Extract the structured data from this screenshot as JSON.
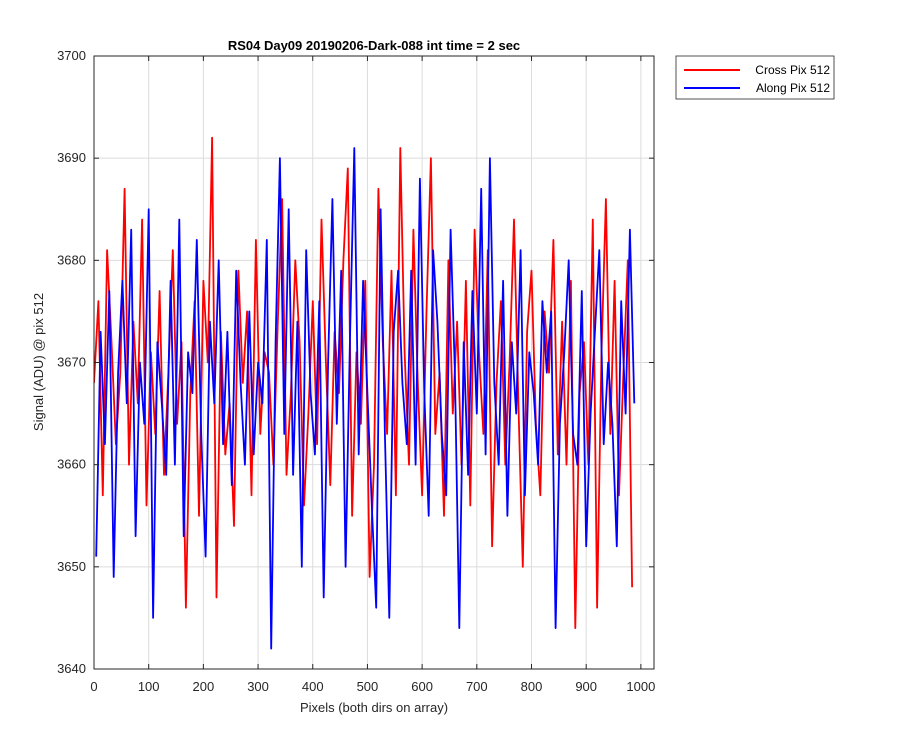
{
  "chart_data": {
    "type": "line",
    "title": "RS04 Day09 20190206-Dark-088 int time = 2 sec",
    "xlabel": "Pixels (both dirs on array)",
    "ylabel": "Signal (ADU) @ pix 512",
    "xlim": [
      0,
      1024
    ],
    "ylim": [
      3640,
      3700
    ],
    "xticks": [
      0,
      100,
      200,
      300,
      400,
      500,
      600,
      700,
      800,
      900,
      1000
    ],
    "yticks": [
      3640,
      3650,
      3660,
      3670,
      3680,
      3690,
      3700
    ],
    "grid": true,
    "legend_position": "outside-top-right",
    "series": [
      {
        "name": "Cross Pix 512",
        "color": "#ff0000",
        "x_start": 0,
        "x_step": 8,
        "values": [
          3668,
          3676,
          3657,
          3681,
          3672,
          3662,
          3669,
          3687,
          3660,
          3674,
          3666,
          3684,
          3656,
          3671,
          3663,
          3677,
          3659,
          3669,
          3681,
          3664,
          3672,
          3646,
          3667,
          3676,
          3655,
          3678,
          3670,
          3692,
          3647,
          3673,
          3661,
          3666,
          3654,
          3679,
          3668,
          3675,
          3657,
          3682,
          3663,
          3671,
          3669,
          3660,
          3674,
          3686,
          3659,
          3667,
          3680,
          3672,
          3656,
          3665,
          3676,
          3662,
          3684,
          3670,
          3658,
          3673,
          3667,
          3680,
          3689,
          3655,
          3671,
          3664,
          3678,
          3649,
          3660,
          3687,
          3672,
          3663,
          3679,
          3657,
          3691,
          3671,
          3660,
          3683,
          3668,
          3657,
          3675,
          3690,
          3663,
          3669,
          3655,
          3680,
          3665,
          3674,
          3660,
          3678,
          3656,
          3683,
          3671,
          3663,
          3681,
          3652,
          3668,
          3676,
          3660,
          3670,
          3684,
          3666,
          3650,
          3673,
          3679,
          3664,
          3657,
          3675,
          3669,
          3682,
          3661,
          3674,
          3660,
          3678,
          3644,
          3667,
          3672,
          3660,
          3684,
          3646,
          3671,
          3686,
          3663,
          3678,
          3657,
          3669,
          3680,
          3648
        ]
      },
      {
        "name": "Along Pix 512",
        "color": "#0000ff",
        "x_start": 4,
        "x_step": 8,
        "values": [
          3651,
          3673,
          3662,
          3677,
          3649,
          3669,
          3678,
          3666,
          3683,
          3653,
          3670,
          3664,
          3685,
          3645,
          3672,
          3666,
          3659,
          3678,
          3660,
          3684,
          3653,
          3671,
          3667,
          3682,
          3663,
          3651,
          3674,
          3666,
          3680,
          3662,
          3673,
          3658,
          3679,
          3668,
          3660,
          3675,
          3661,
          3670,
          3666,
          3682,
          3642,
          3672,
          3690,
          3663,
          3685,
          3659,
          3674,
          3650,
          3681,
          3667,
          3661,
          3676,
          3647,
          3670,
          3686,
          3664,
          3679,
          3650,
          3672,
          3691,
          3661,
          3678,
          3667,
          3656,
          3646,
          3685,
          3663,
          3645,
          3673,
          3679,
          3668,
          3662,
          3679,
          3660,
          3688,
          3667,
          3655,
          3681,
          3674,
          3663,
          3657,
          3683,
          3669,
          3644,
          3672,
          3659,
          3677,
          3665,
          3687,
          3661,
          3690,
          3668,
          3660,
          3678,
          3655,
          3672,
          3665,
          3681,
          3657,
          3671,
          3667,
          3660,
          3676,
          3669,
          3675,
          3644,
          3664,
          3671,
          3680,
          3663,
          3660,
          3677,
          3652,
          3665,
          3673,
          3681,
          3662,
          3670,
          3664,
          3652,
          3676,
          3665,
          3683,
          3666
        ]
      }
    ]
  }
}
